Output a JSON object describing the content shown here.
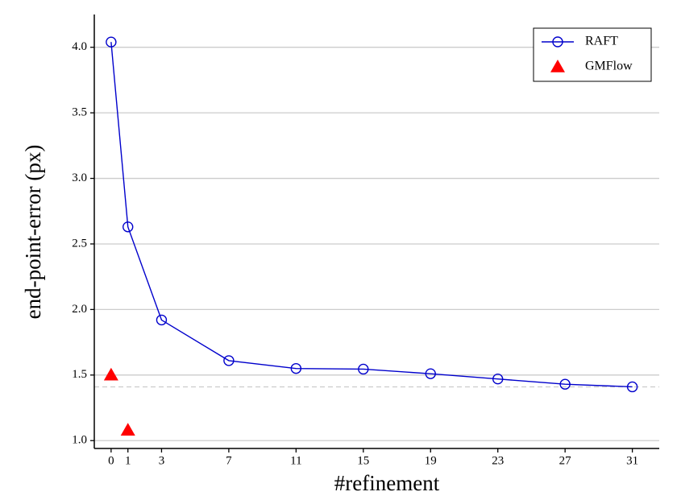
{
  "chart_data": {
    "type": "line",
    "xlabel": "#refinement",
    "ylabel": "end-point-error (px)",
    "xlim": [
      -1,
      32.6
    ],
    "ylim": [
      0.94,
      4.25
    ],
    "xticks": [
      0,
      1,
      3,
      7,
      11,
      15,
      19,
      23,
      27,
      31
    ],
    "yticks": [
      {
        "value": 1,
        "label": "1.0"
      },
      {
        "value": 1.5,
        "label": "1.5"
      },
      {
        "value": 2,
        "label": "2.0"
      },
      {
        "value": 2.5,
        "label": "2.5"
      },
      {
        "value": 3,
        "label": "3.0"
      },
      {
        "value": 3.5,
        "label": "3.5"
      },
      {
        "value": 4,
        "label": "4.0"
      }
    ],
    "grid": true,
    "legend": "upper right",
    "reference_line": 1.41,
    "series": [
      {
        "name": "RAFT",
        "color": "#0000cc",
        "marker": "circle",
        "line": true,
        "x": [
          0,
          1,
          3,
          7,
          11,
          15,
          19,
          23,
          27,
          31
        ],
        "values": [
          4.04,
          2.63,
          1.92,
          1.61,
          1.55,
          1.545,
          1.51,
          1.47,
          1.43,
          1.41
        ]
      },
      {
        "name": "GMFlow",
        "color": "#ff0000",
        "marker": "triangle",
        "line": false,
        "x": [
          0,
          1
        ],
        "values": [
          1.5,
          1.08
        ]
      }
    ]
  }
}
